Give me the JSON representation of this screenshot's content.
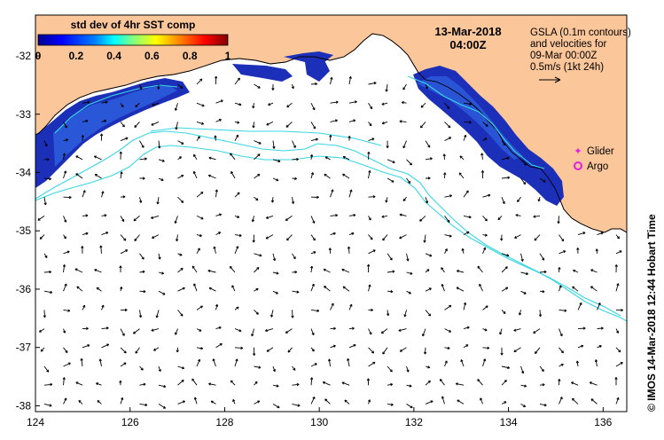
{
  "map": {
    "lon_range": [
      124,
      136.5
    ],
    "lat_range": [
      -38.1,
      -31.3
    ],
    "x_ticks": [
      "124",
      "126",
      "128",
      "130",
      "132",
      "134",
      "136"
    ],
    "y_ticks": [
      "-32",
      "-33",
      "-34",
      "-35",
      "-36",
      "-37",
      "-38"
    ],
    "colors": {
      "land": "#fbc69a",
      "water": "#ffffff",
      "sst_dark": "#1c2fb8",
      "sst_mid": "#2e62e0",
      "contour": "#38d6e4",
      "arrow": "#000000",
      "marker": "#e020e0"
    }
  },
  "colorbar": {
    "title": "std dev of 4hr SST comp",
    "ticks": [
      "0",
      "0.2",
      "0.4",
      "0.6",
      "0.8",
      "1"
    ],
    "colors": [
      "#00008f",
      "#0000ff",
      "#0080ff",
      "#00ffff",
      "#80ff80",
      "#ffff00",
      "#ff8000",
      "#ff0000",
      "#800000"
    ]
  },
  "timestamp": {
    "date": "13-Mar-2018",
    "time": "04:00Z"
  },
  "info": {
    "line1": "GSLA (0.1m contours)",
    "line2": "and velocities for",
    "line3": "09-Mar 00:00Z",
    "line4": "0.5m/s (1kt 24h)"
  },
  "legend": {
    "glider": "Glider",
    "argo": "Argo"
  },
  "credit": "© IMOS 14-Mar-2018 12:44 Hobart Time"
}
